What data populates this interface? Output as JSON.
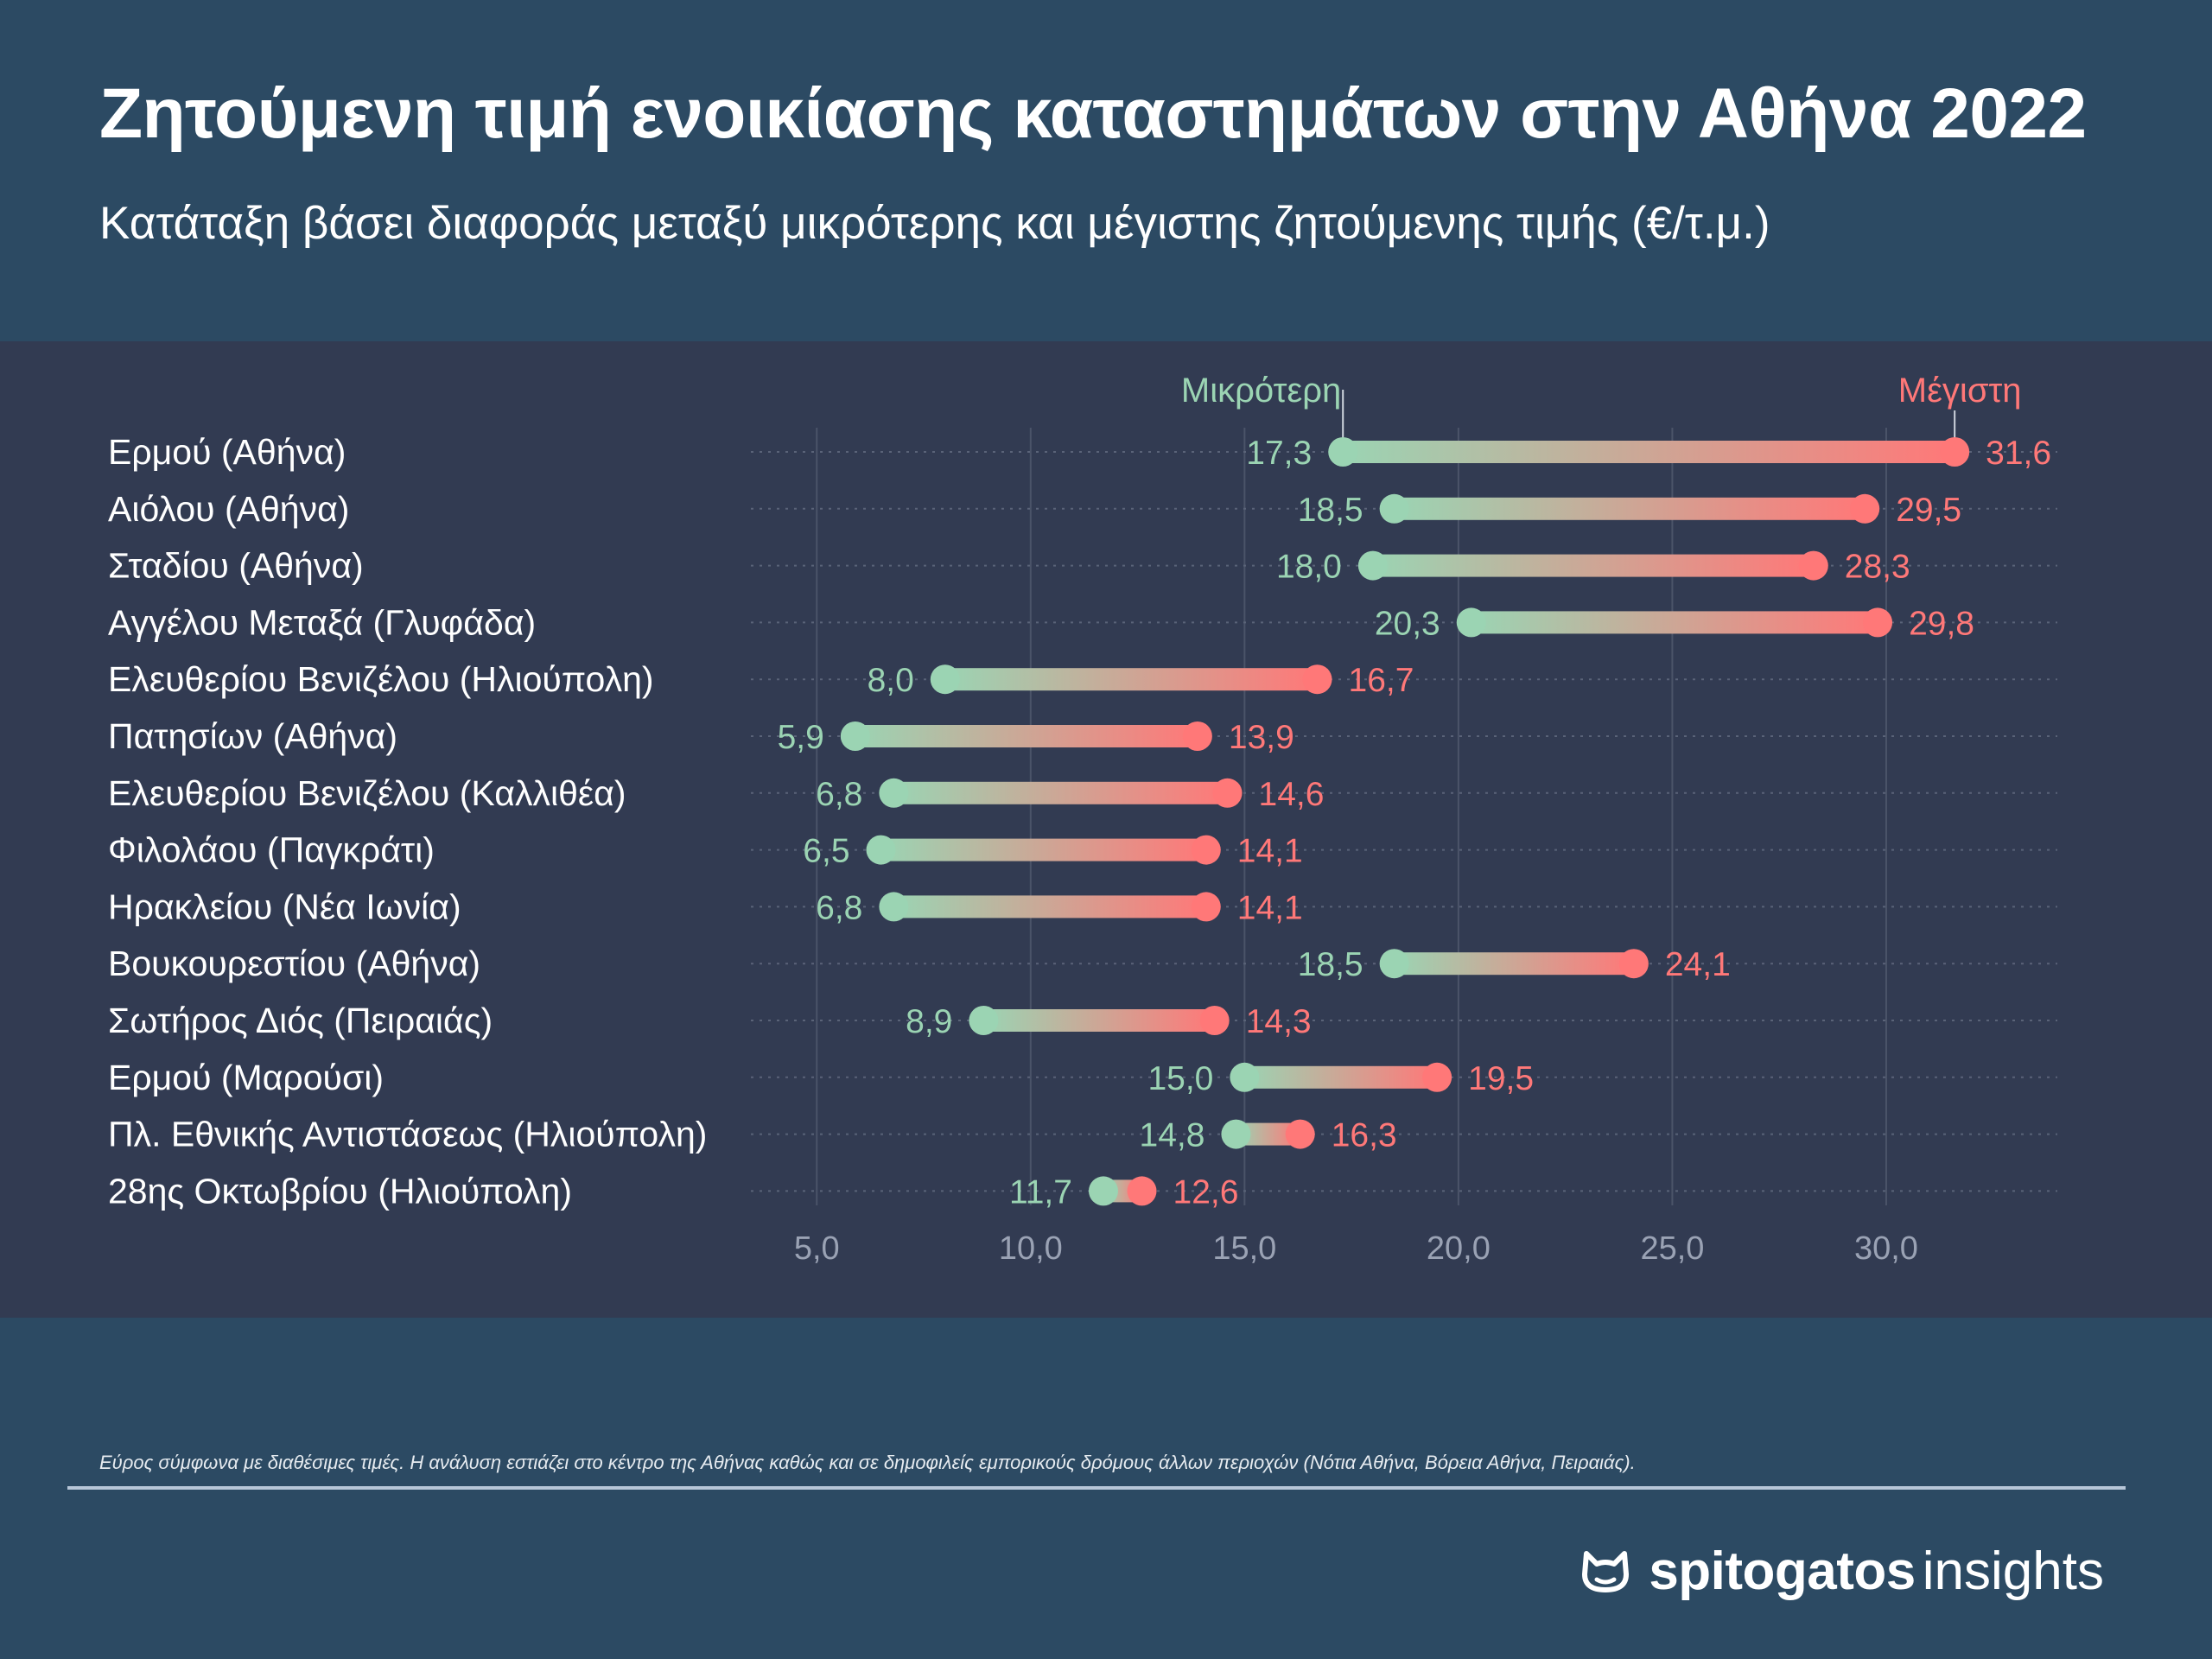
{
  "header": {
    "title": "Ζητούμενη τιμή ενοικίασης καταστημάτων στην Αθήνα 2022",
    "subtitle": "Κατάταξη βάσει διαφοράς μεταξύ μικρότερης και μέγιστης ζητούμενης τιμής (€/τ.μ.)"
  },
  "chart_data": {
    "type": "dumbbell",
    "title": "Ζητούμενη τιμή ενοικίασης καταστημάτων στην Αθήνα 2022",
    "subtitle": "Κατάταξη βάσει διαφοράς μεταξύ μικρότερης και μέγιστης ζητούμενης τιμής (€/τ.μ.)",
    "legend_min": "Μικρότερη",
    "legend_max": "Μέγιστη",
    "xlim": [
      3.5,
      34.0
    ],
    "xticks": [
      5.0,
      10.0,
      15.0,
      20.0,
      25.0,
      30.0
    ],
    "xtick_labels": [
      "5,0",
      "10,0",
      "15,0",
      "20,0",
      "25,0",
      "30,0"
    ],
    "colors": {
      "min": "#9bd4b3",
      "max": "#ff7878"
    },
    "rows": [
      {
        "label": "Ερμού (Αθήνα)",
        "min": 17.3,
        "max": 31.6,
        "min_label": "17,3",
        "max_label": "31,6"
      },
      {
        "label": "Αιόλου (Αθήνα)",
        "min": 18.5,
        "max": 29.5,
        "min_label": "18,5",
        "max_label": "29,5"
      },
      {
        "label": "Σταδίου (Αθήνα)",
        "min": 18.0,
        "max": 28.3,
        "min_label": "18,0",
        "max_label": "28,3"
      },
      {
        "label": "Αγγέλου Μεταξά (Γλυφάδα)",
        "min": 20.3,
        "max": 29.8,
        "min_label": "20,3",
        "max_label": "29,8"
      },
      {
        "label": "Ελευθερίου Βενιζέλου (Ηλιούπολη)",
        "min": 8.0,
        "max": 16.7,
        "min_label": "8,0",
        "max_label": "16,7"
      },
      {
        "label": "Πατησίων (Αθήνα)",
        "min": 5.9,
        "max": 13.9,
        "min_label": "5,9",
        "max_label": "13,9"
      },
      {
        "label": "Ελευθερίου Βενιζέλου (Καλλιθέα)",
        "min": 6.8,
        "max": 14.6,
        "min_label": "6,8",
        "max_label": "14,6"
      },
      {
        "label": "Φιλολάου (Παγκράτι)",
        "min": 6.5,
        "max": 14.1,
        "min_label": "6,5",
        "max_label": "14,1"
      },
      {
        "label": "Ηρακλείου (Νέα Ιωνία)",
        "min": 6.8,
        "max": 14.1,
        "min_label": "6,8",
        "max_label": "14,1"
      },
      {
        "label": "Βουκουρεστίου (Αθήνα)",
        "min": 18.5,
        "max": 24.1,
        "min_label": "18,5",
        "max_label": "24,1"
      },
      {
        "label": "Σωτήρος Διός (Πειραιάς)",
        "min": 8.9,
        "max": 14.3,
        "min_label": "8,9",
        "max_label": "14,3"
      },
      {
        "label": "Ερμού (Μαρούσι)",
        "min": 15.0,
        "max": 19.5,
        "min_label": "15,0",
        "max_label": "19,5"
      },
      {
        "label": "Πλ. Εθνικής Αντιστάσεως (Ηλιούπολη)",
        "min": 14.8,
        "max": 16.3,
        "min_label": "14,8",
        "max_label": "16,3"
      },
      {
        "label": "28ης Οκτωβρίου (Ηλιούπολη)",
        "min": 11.7,
        "max": 12.6,
        "min_label": "11,7",
        "max_label": "12,6"
      }
    ]
  },
  "footer": {
    "note": "Εύρος σύμφωνα με διαθέσιμες τιμές. Η ανάλυση εστιάζει στο κέντρο της Αθήνας καθώς και σε δημοφιλείς εμπορικούς δρόμους άλλων περιοχών (Νότια Αθήνα, Βόρεια Αθήνα, Πειραιάς).",
    "brand_name": "spitogatos",
    "brand_suffix": "insights",
    "brand_icon": "cat-icon"
  }
}
